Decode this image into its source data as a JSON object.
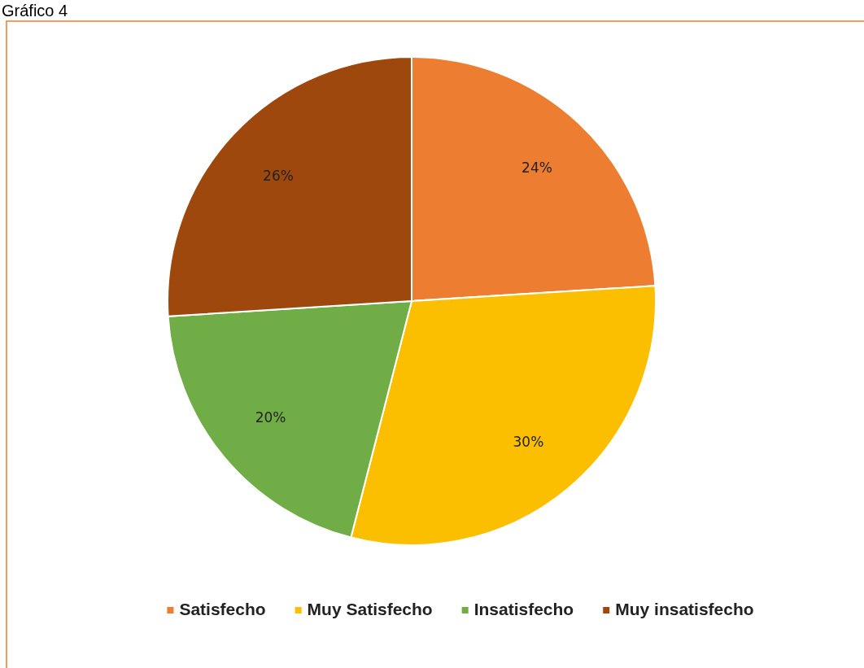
{
  "chart_data": {
    "type": "pie",
    "title": "Gráfico 4",
    "categories": [
      "Satisfecho",
      "Muy Satisfecho",
      "Insatisfecho",
      "Muy insatisfecho"
    ],
    "values": [
      24,
      30,
      20,
      26
    ],
    "colors": [
      "#ed7d31",
      "#fbbf00",
      "#70ad47",
      "#9e480e"
    ],
    "value_labels": [
      "24%",
      "30%",
      "20%",
      "26%"
    ],
    "legend": "bottom"
  }
}
